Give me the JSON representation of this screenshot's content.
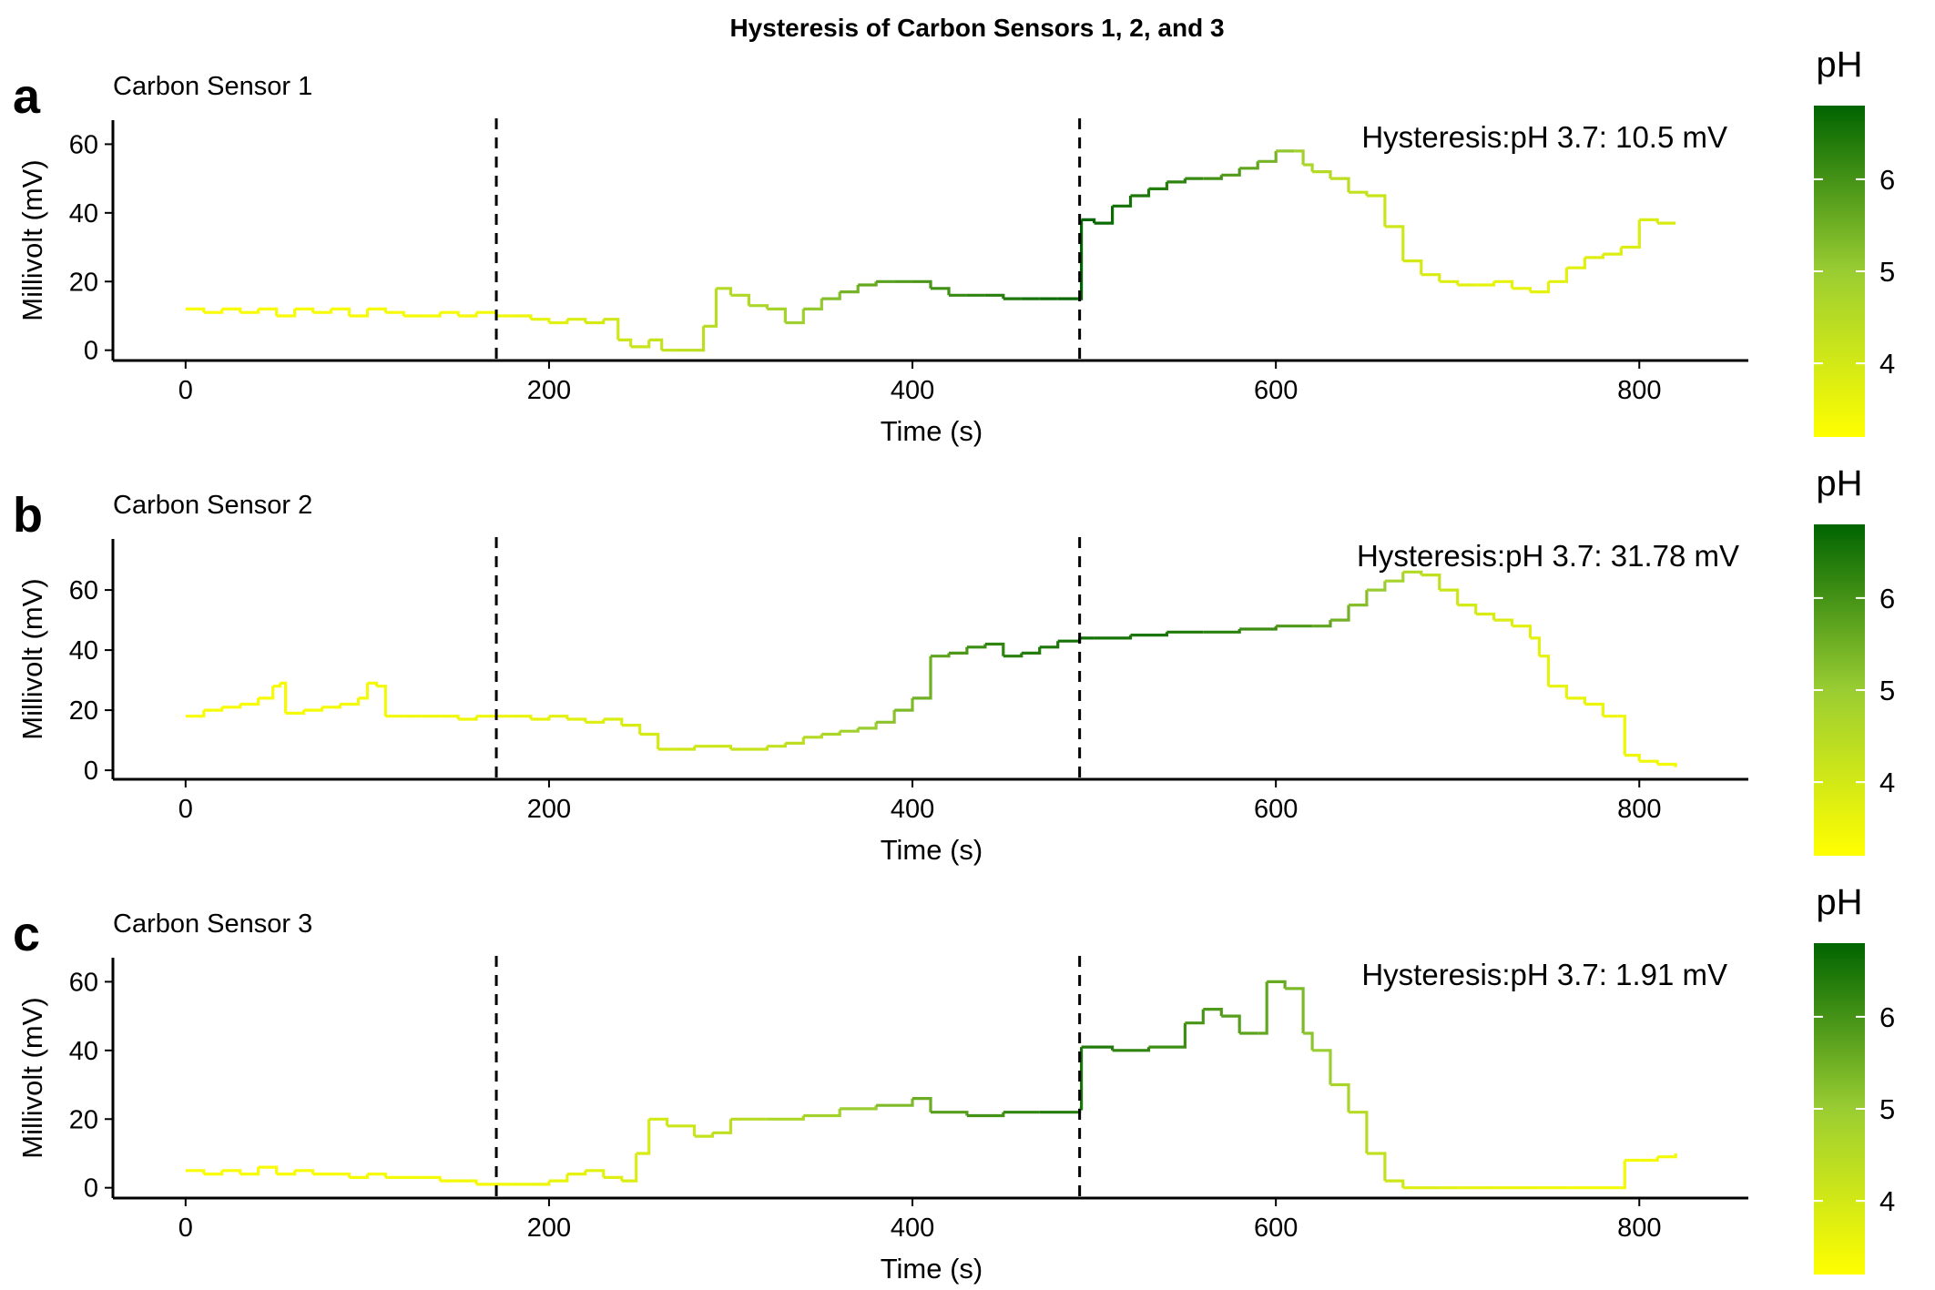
{
  "figure": {
    "title": "Hysteresis of Carbon Sensors 1, 2, and 3"
  },
  "colors": {
    "low_ph": "#ffff00",
    "mid_ph": "#9acd32",
    "high_ph": "#006400",
    "dashed_line": "#000000",
    "axis": "#000000"
  },
  "chart_data": [
    {
      "type": "line",
      "panel_label": "a",
      "subtitle": "Carbon Sensor 1",
      "annotation": "Hysteresis:pH 3.7: 10.5 mV",
      "xlabel": "Time (s)",
      "ylabel": "Millivolt (mV)",
      "xlim": [
        -40,
        860
      ],
      "ylim": [
        -3,
        67
      ],
      "xticks": [
        0,
        200,
        400,
        600,
        800
      ],
      "yticks": [
        0,
        20,
        40,
        60
      ],
      "vlines": [
        171,
        492
      ],
      "grid": false,
      "legend": {
        "title": "pH",
        "position": "right",
        "ticks": [
          4,
          5,
          6
        ],
        "range": [
          3.2,
          6.8
        ]
      },
      "points": [
        [
          0,
          12
        ],
        [
          10,
          11
        ],
        [
          20,
          12
        ],
        [
          30,
          11
        ],
        [
          40,
          12
        ],
        [
          50,
          10
        ],
        [
          60,
          12
        ],
        [
          70,
          11
        ],
        [
          80,
          12
        ],
        [
          90,
          10
        ],
        [
          100,
          12
        ],
        [
          110,
          11
        ],
        [
          120,
          10
        ],
        [
          130,
          10
        ],
        [
          140,
          11
        ],
        [
          150,
          10
        ],
        [
          160,
          11
        ],
        [
          171,
          10
        ],
        [
          180,
          10
        ],
        [
          190,
          9
        ],
        [
          200,
          8
        ],
        [
          210,
          9
        ],
        [
          220,
          8
        ],
        [
          230,
          9
        ],
        [
          238,
          3
        ],
        [
          245,
          1
        ],
        [
          255,
          3
        ],
        [
          262,
          0
        ],
        [
          270,
          0
        ],
        [
          280,
          0
        ],
        [
          285,
          7
        ],
        [
          292,
          18
        ],
        [
          300,
          16
        ],
        [
          310,
          13
        ],
        [
          320,
          12
        ],
        [
          330,
          8
        ],
        [
          340,
          12
        ],
        [
          350,
          15
        ],
        [
          360,
          17
        ],
        [
          370,
          19
        ],
        [
          380,
          20
        ],
        [
          390,
          20
        ],
        [
          400,
          20
        ],
        [
          410,
          18
        ],
        [
          420,
          16
        ],
        [
          430,
          16
        ],
        [
          440,
          16
        ],
        [
          450,
          15
        ],
        [
          460,
          15
        ],
        [
          470,
          15
        ],
        [
          480,
          15
        ],
        [
          491,
          15
        ],
        [
          493,
          38
        ],
        [
          500,
          37
        ],
        [
          510,
          42
        ],
        [
          520,
          45
        ],
        [
          530,
          47
        ],
        [
          540,
          49
        ],
        [
          550,
          50
        ],
        [
          560,
          50
        ],
        [
          570,
          51
        ],
        [
          580,
          53
        ],
        [
          590,
          55
        ],
        [
          600,
          58
        ],
        [
          610,
          58
        ],
        [
          615,
          54
        ],
        [
          620,
          52
        ],
        [
          630,
          50
        ],
        [
          640,
          46
        ],
        [
          650,
          45
        ],
        [
          660,
          36
        ],
        [
          670,
          26
        ],
        [
          680,
          22
        ],
        [
          690,
          20
        ],
        [
          700,
          19
        ],
        [
          710,
          19
        ],
        [
          720,
          20
        ],
        [
          730,
          18
        ],
        [
          740,
          17
        ],
        [
          750,
          20
        ],
        [
          760,
          24
        ],
        [
          770,
          27
        ],
        [
          780,
          28
        ],
        [
          790,
          30
        ],
        [
          800,
          38
        ],
        [
          810,
          37
        ],
        [
          820,
          37
        ]
      ],
      "ph": [
        [
          0,
          3.3
        ],
        [
          171,
          3.4
        ],
        [
          230,
          4.0
        ],
        [
          280,
          4.4
        ],
        [
          330,
          4.8
        ],
        [
          380,
          5.7
        ],
        [
          440,
          6.3
        ],
        [
          492,
          6.8
        ],
        [
          560,
          6.1
        ],
        [
          590,
          5.6
        ],
        [
          620,
          4.6
        ],
        [
          660,
          4.1
        ],
        [
          720,
          3.6
        ],
        [
          780,
          3.8
        ],
        [
          820,
          3.9
        ]
      ]
    },
    {
      "type": "line",
      "panel_label": "b",
      "subtitle": "Carbon Sensor 2",
      "annotation": "Hysteresis:pH 3.7: 31.78 mV",
      "xlabel": "Time (s)",
      "ylabel": "Millivolt (mV)",
      "xlim": [
        -40,
        860
      ],
      "ylim": [
        -3,
        77
      ],
      "xticks": [
        0,
        200,
        400,
        600,
        800
      ],
      "yticks": [
        0,
        20,
        40,
        60
      ],
      "vlines": [
        171,
        492
      ],
      "grid": false,
      "legend": {
        "title": "pH",
        "position": "right",
        "ticks": [
          4,
          5,
          6
        ],
        "range": [
          3.2,
          6.8
        ]
      },
      "points": [
        [
          0,
          18
        ],
        [
          10,
          20
        ],
        [
          20,
          21
        ],
        [
          30,
          22
        ],
        [
          40,
          24
        ],
        [
          48,
          28
        ],
        [
          52,
          29
        ],
        [
          55,
          19
        ],
        [
          65,
          20
        ],
        [
          75,
          21
        ],
        [
          85,
          22
        ],
        [
          95,
          24
        ],
        [
          100,
          29
        ],
        [
          105,
          28
        ],
        [
          110,
          18
        ],
        [
          120,
          18
        ],
        [
          130,
          18
        ],
        [
          140,
          18
        ],
        [
          150,
          17
        ],
        [
          160,
          18
        ],
        [
          171,
          18
        ],
        [
          180,
          18
        ],
        [
          190,
          17
        ],
        [
          200,
          18
        ],
        [
          210,
          17
        ],
        [
          220,
          16
        ],
        [
          230,
          17
        ],
        [
          240,
          15
        ],
        [
          250,
          12
        ],
        [
          260,
          7
        ],
        [
          270,
          7
        ],
        [
          280,
          8
        ],
        [
          290,
          8
        ],
        [
          300,
          7
        ],
        [
          310,
          7
        ],
        [
          320,
          8
        ],
        [
          330,
          9
        ],
        [
          340,
          11
        ],
        [
          350,
          12
        ],
        [
          360,
          13
        ],
        [
          370,
          14
        ],
        [
          380,
          16
        ],
        [
          390,
          20
        ],
        [
          400,
          24
        ],
        [
          410,
          38
        ],
        [
          420,
          39
        ],
        [
          430,
          41
        ],
        [
          440,
          42
        ],
        [
          450,
          38
        ],
        [
          460,
          39
        ],
        [
          470,
          41
        ],
        [
          480,
          43
        ],
        [
          492,
          44
        ],
        [
          500,
          44
        ],
        [
          520,
          45
        ],
        [
          540,
          46
        ],
        [
          560,
          46
        ],
        [
          580,
          47
        ],
        [
          600,
          48
        ],
        [
          620,
          48
        ],
        [
          630,
          50
        ],
        [
          640,
          55
        ],
        [
          650,
          60
        ],
        [
          660,
          63
        ],
        [
          670,
          66
        ],
        [
          680,
          65
        ],
        [
          690,
          60
        ],
        [
          700,
          55
        ],
        [
          710,
          52
        ],
        [
          720,
          50
        ],
        [
          730,
          48
        ],
        [
          740,
          44
        ],
        [
          745,
          38
        ],
        [
          750,
          28
        ],
        [
          760,
          24
        ],
        [
          770,
          22
        ],
        [
          780,
          18
        ],
        [
          788,
          18
        ],
        [
          792,
          5
        ],
        [
          800,
          3
        ],
        [
          810,
          2
        ],
        [
          820,
          1
        ]
      ],
      "ph": [
        [
          0,
          3.3
        ],
        [
          171,
          3.5
        ],
        [
          260,
          4.0
        ],
        [
          330,
          4.3
        ],
        [
          400,
          5.4
        ],
        [
          440,
          6.2
        ],
        [
          492,
          6.6
        ],
        [
          560,
          6.4
        ],
        [
          620,
          5.8
        ],
        [
          660,
          4.9
        ],
        [
          700,
          4.0
        ],
        [
          760,
          3.6
        ],
        [
          820,
          3.4
        ]
      ]
    },
    {
      "type": "line",
      "panel_label": "c",
      "subtitle": "Carbon Sensor 3",
      "annotation": "Hysteresis:pH 3.7: 1.91 mV",
      "xlabel": "Time (s)",
      "ylabel": "Millivolt (mV)",
      "xlim": [
        -40,
        860
      ],
      "ylim": [
        -3,
        67
      ],
      "xticks": [
        0,
        200,
        400,
        600,
        800
      ],
      "yticks": [
        0,
        20,
        40,
        60
      ],
      "vlines": [
        171,
        492
      ],
      "grid": false,
      "legend": {
        "title": "pH",
        "position": "right",
        "ticks": [
          4,
          5,
          6
        ],
        "range": [
          3.2,
          6.8
        ]
      },
      "points": [
        [
          0,
          5
        ],
        [
          10,
          4
        ],
        [
          20,
          5
        ],
        [
          30,
          4
        ],
        [
          40,
          6
        ],
        [
          50,
          4
        ],
        [
          60,
          5
        ],
        [
          70,
          4
        ],
        [
          80,
          4
        ],
        [
          90,
          3
        ],
        [
          100,
          4
        ],
        [
          110,
          3
        ],
        [
          120,
          3
        ],
        [
          130,
          3
        ],
        [
          140,
          2
        ],
        [
          150,
          2
        ],
        [
          160,
          1
        ],
        [
          171,
          1
        ],
        [
          180,
          1
        ],
        [
          190,
          1
        ],
        [
          200,
          2
        ],
        [
          210,
          4
        ],
        [
          220,
          5
        ],
        [
          230,
          3
        ],
        [
          240,
          2
        ],
        [
          248,
          10
        ],
        [
          255,
          20
        ],
        [
          265,
          18
        ],
        [
          280,
          15
        ],
        [
          290,
          16
        ],
        [
          300,
          20
        ],
        [
          320,
          20
        ],
        [
          340,
          21
        ],
        [
          360,
          23
        ],
        [
          380,
          24
        ],
        [
          400,
          26
        ],
        [
          410,
          22
        ],
        [
          430,
          21
        ],
        [
          450,
          22
        ],
        [
          470,
          22
        ],
        [
          492,
          23
        ],
        [
          493,
          41
        ],
        [
          510,
          40
        ],
        [
          530,
          41
        ],
        [
          550,
          48
        ],
        [
          560,
          52
        ],
        [
          570,
          50
        ],
        [
          580,
          45
        ],
        [
          590,
          45
        ],
        [
          595,
          60
        ],
        [
          605,
          58
        ],
        [
          615,
          45
        ],
        [
          620,
          40
        ],
        [
          630,
          30
        ],
        [
          640,
          22
        ],
        [
          650,
          10
        ],
        [
          660,
          2
        ],
        [
          670,
          0
        ],
        [
          690,
          0
        ],
        [
          700,
          0
        ],
        [
          720,
          0
        ],
        [
          740,
          0
        ],
        [
          760,
          0
        ],
        [
          789,
          0
        ],
        [
          792,
          8
        ],
        [
          800,
          8
        ],
        [
          810,
          9
        ],
        [
          820,
          10
        ]
      ],
      "ph": [
        [
          0,
          3.3
        ],
        [
          171,
          3.4
        ],
        [
          240,
          3.8
        ],
        [
          300,
          4.4
        ],
        [
          370,
          5.0
        ],
        [
          420,
          5.8
        ],
        [
          492,
          6.5
        ],
        [
          550,
          6.0
        ],
        [
          600,
          5.6
        ],
        [
          640,
          4.6
        ],
        [
          680,
          3.8
        ],
        [
          760,
          3.4
        ],
        [
          820,
          3.4
        ]
      ]
    }
  ]
}
